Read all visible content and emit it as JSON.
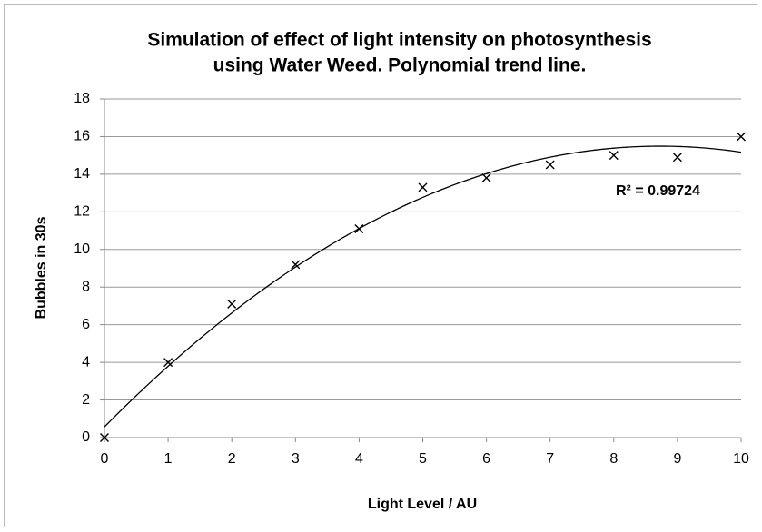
{
  "chart_data": {
    "type": "scatter",
    "title": [
      "Simulation of effect of light intensity on photosynthesis",
      "using Water Weed. Polynomial trend line."
    ],
    "xlabel": "Light Level / AU",
    "ylabel": "Bubbles in 30s",
    "annotation": "R² = 0.99724",
    "x": [
      0,
      1,
      2,
      3,
      4,
      5,
      6,
      7,
      8,
      9,
      10
    ],
    "y": [
      0,
      4,
      7.1,
      9.2,
      11.1,
      13.3,
      13.8,
      14.5,
      15,
      14.9,
      16
    ],
    "color": "#000000",
    "trendline": "polynomial",
    "xlim": [
      0,
      10
    ],
    "xticks": [
      0,
      1,
      2,
      3,
      4,
      5,
      6,
      7,
      8,
      9,
      10
    ],
    "ylim": [
      0,
      18
    ],
    "yticks": [
      0,
      2,
      4,
      6,
      8,
      10,
      12,
      14,
      16,
      18
    ],
    "grid": true
  }
}
